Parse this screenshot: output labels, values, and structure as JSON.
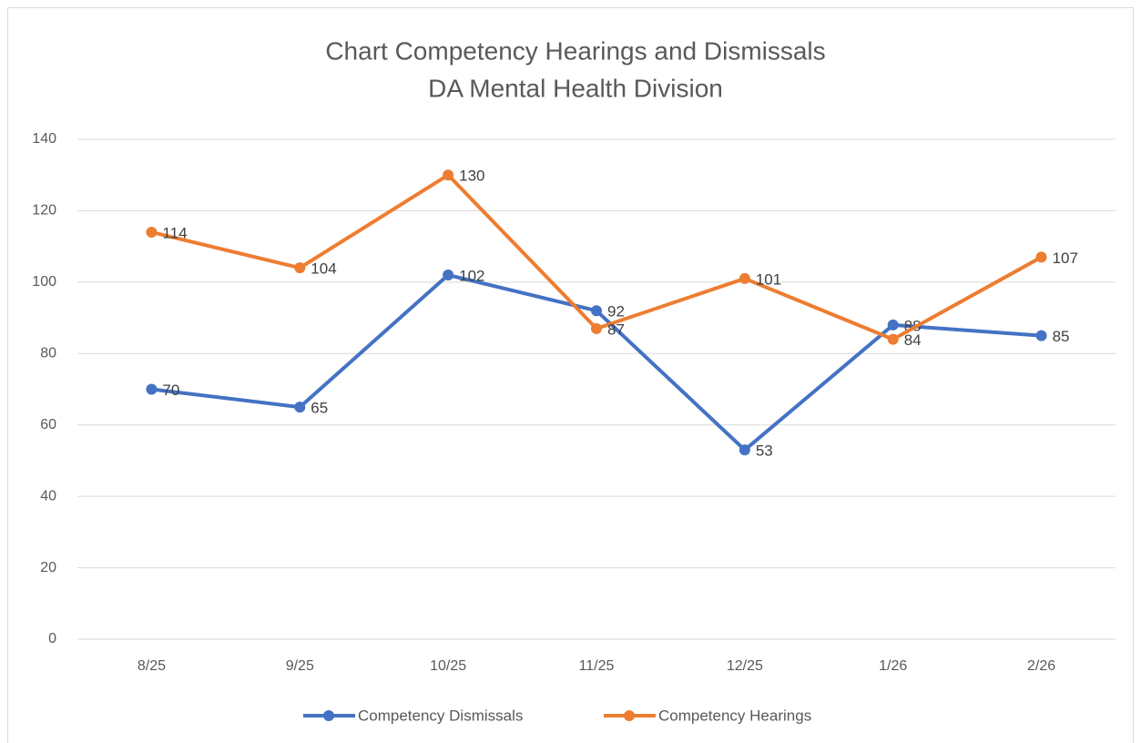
{
  "chart_data": {
    "type": "line",
    "title": "Chart Competency Hearings and Dismissals",
    "subtitle": "DA Mental Health Division",
    "categories": [
      "8/25",
      "9/25",
      "10/25",
      "11/25",
      "12/25",
      "1/26",
      "2/26"
    ],
    "series": [
      {
        "name": "Competency Dismissals",
        "color": "#4472c4",
        "values": [
          70,
          65,
          102,
          92,
          53,
          88,
          85
        ]
      },
      {
        "name": "Competency Hearings",
        "color": "#ed7d31",
        "values": [
          114,
          104,
          130,
          87,
          101,
          84,
          107
        ]
      }
    ],
    "ylim": [
      0,
      140
    ],
    "yticks": [
      0,
      20,
      40,
      60,
      80,
      100,
      120,
      140
    ],
    "grid": true,
    "legend": "bottom"
  }
}
